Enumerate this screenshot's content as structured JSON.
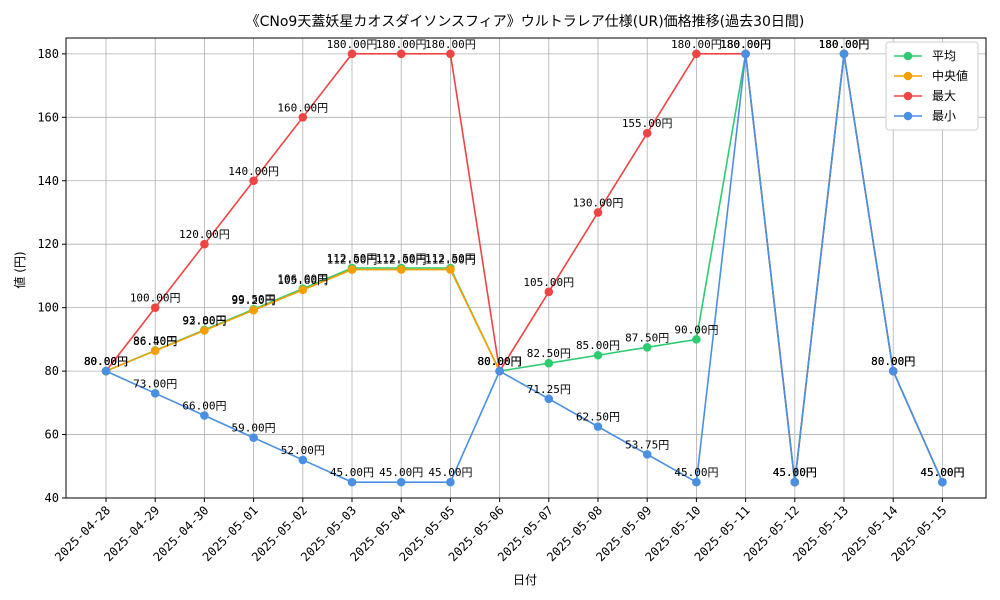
{
  "chart_data": {
    "type": "line",
    "title": "《CNo9天蓋妖星カオスダイソンスフィア》ウルトラレア仕様(UR)価格推移(過去30日間)",
    "xlabel": "日付",
    "ylabel": "値 (円)",
    "ylim": [
      40,
      185
    ],
    "yticks": [
      40,
      60,
      80,
      100,
      120,
      140,
      160,
      180
    ],
    "grid": true,
    "legend_position": "top-right",
    "value_suffix": "円",
    "categories": [
      "2025-04-28",
      "2025-04-29",
      "2025-04-30",
      "2025-05-01",
      "2025-05-02",
      "2025-05-03",
      "2025-05-04",
      "2025-05-05",
      "2025-05-06",
      "2025-05-07",
      "2025-05-08",
      "2025-05-09",
      "2025-05-10",
      "2025-05-11",
      "2025-05-12",
      "2025-05-13",
      "2025-05-14",
      "2025-05-15"
    ],
    "series": [
      {
        "name": "平均",
        "color": "#2ecc71",
        "values": [
          80,
          86.5,
          93,
          99.5,
          106,
          112.5,
          112.5,
          112.5,
          80,
          82.5,
          85,
          87.5,
          90,
          180,
          45,
          180,
          80,
          45
        ]
      },
      {
        "name": "中央値",
        "color": "#f5a000",
        "values": [
          80,
          86.4,
          92.8,
          99.2,
          105.6,
          112,
          112,
          112,
          80,
          null,
          null,
          null,
          null,
          null,
          null,
          null,
          null,
          null
        ]
      },
      {
        "name": "最大",
        "color": "#ef4444",
        "values": [
          80,
          100,
          120,
          140,
          160,
          180,
          180,
          180,
          80,
          105,
          130,
          155,
          180,
          180,
          45,
          180,
          80,
          45
        ]
      },
      {
        "name": "最小",
        "color": "#4a90e2",
        "values": [
          80,
          73,
          66,
          59,
          52,
          45,
          45,
          45,
          80,
          71.25,
          62.5,
          53.75,
          45,
          180,
          45,
          180,
          80,
          45
        ]
      }
    ]
  }
}
